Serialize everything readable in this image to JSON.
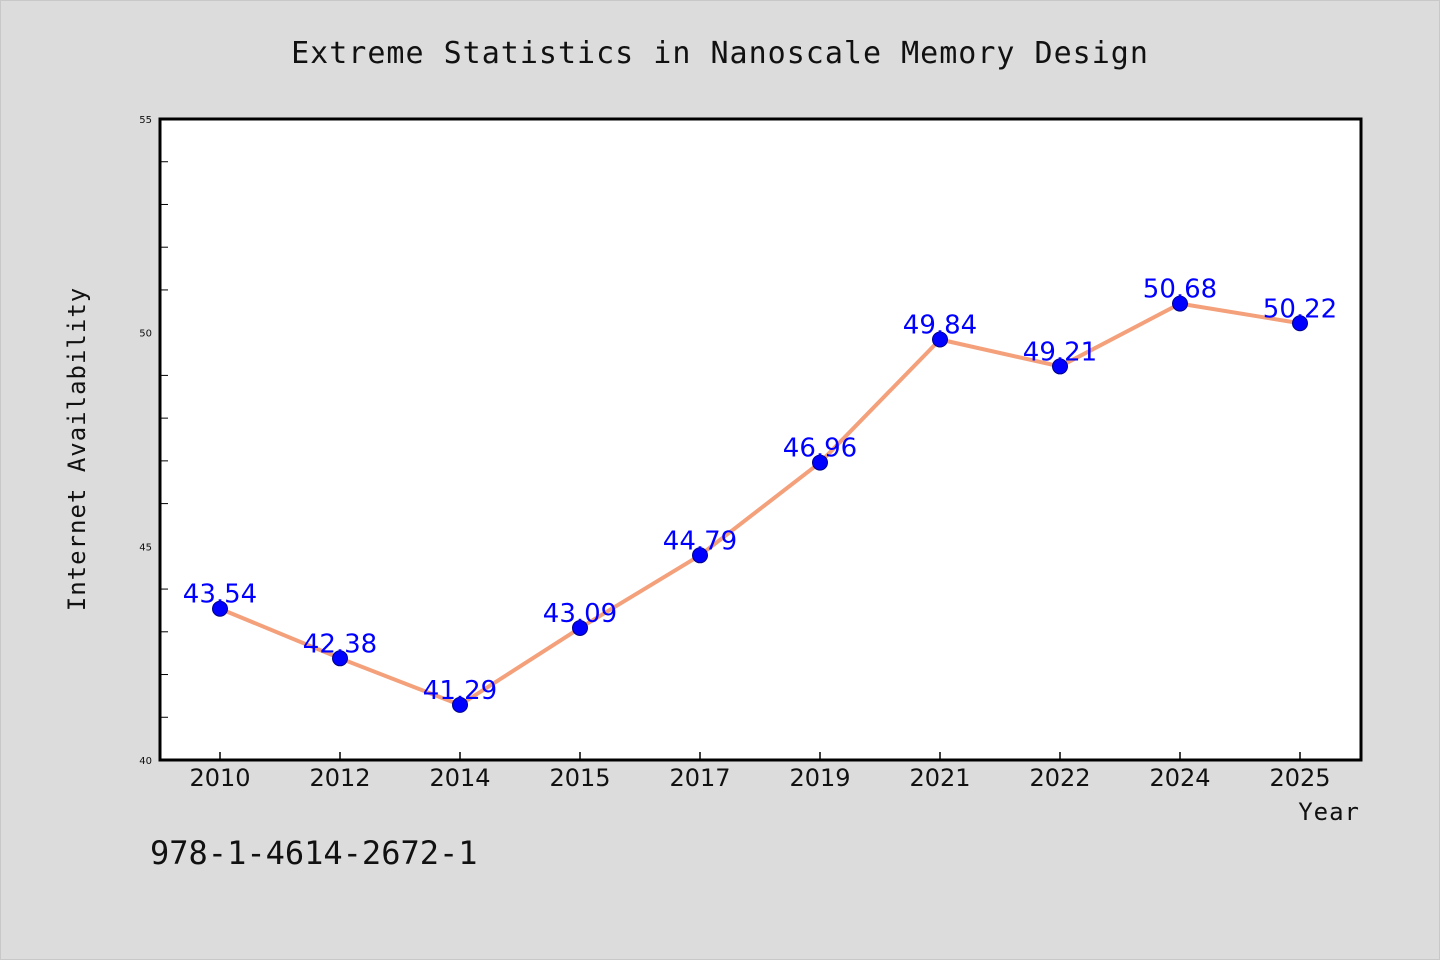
{
  "chart_data": {
    "type": "line",
    "title": "Extreme Statistics in Nanoscale Memory Design",
    "xlabel": "Year",
    "ylabel": "Internet Availability",
    "categories": [
      "2010",
      "2012",
      "2014",
      "2015",
      "2017",
      "2019",
      "2021",
      "2022",
      "2024",
      "2025"
    ],
    "series": [
      {
        "values": [
          43.54,
          42.38,
          41.29,
          43.09,
          44.79,
          46.96,
          49.84,
          49.21,
          50.68,
          50.22
        ]
      }
    ],
    "data_labels": [
      "43.54",
      "42.38",
      "41.29",
      "43.09",
      "44.79",
      "46.96",
      "49.84",
      "49.21",
      "50.68",
      "50.22"
    ],
    "ylim": [
      40,
      55
    ],
    "yticks": [
      40,
      45,
      50,
      55
    ],
    "grid": false,
    "colors": {
      "line": "#f4a07a",
      "marker": "#0000ff",
      "label": "#0000ff",
      "background": "#dcdcdc",
      "plot_bg": "#ffffff"
    }
  },
  "footnote": "978-1-4614-2672-1"
}
